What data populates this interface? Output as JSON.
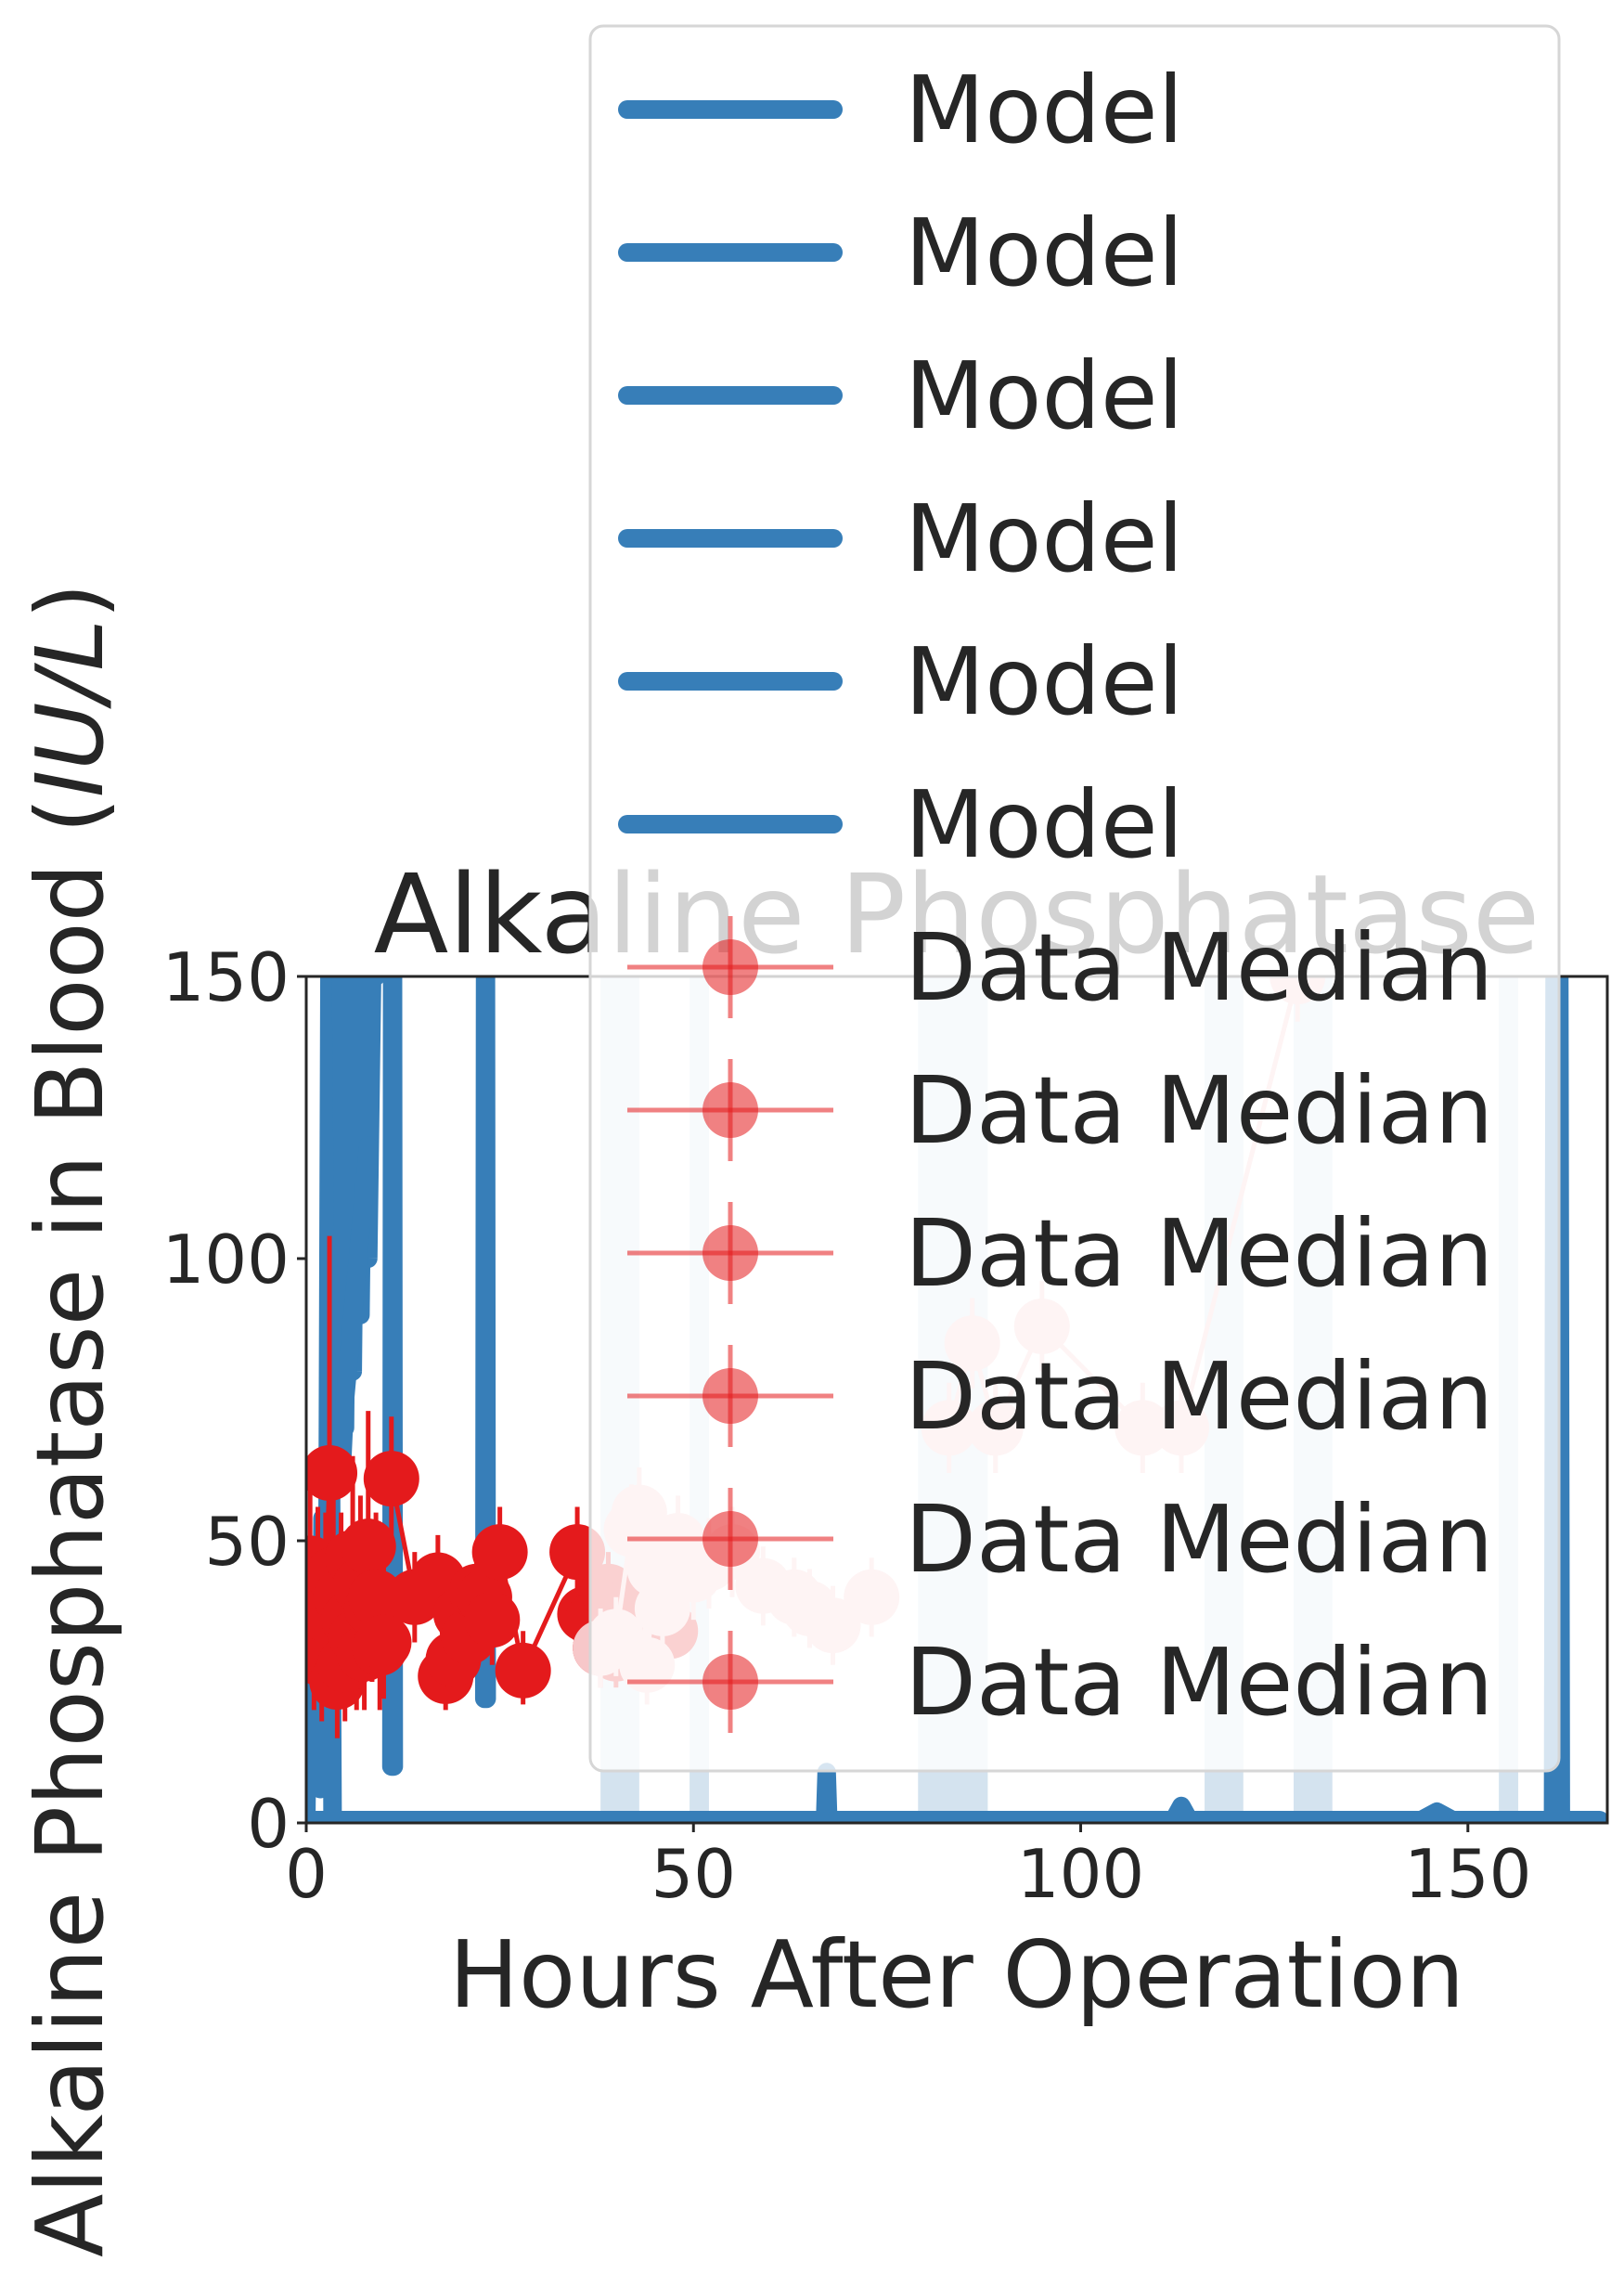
{
  "chart_data": {
    "type": "line",
    "title": "Alkaline Phosphatase",
    "xlabel": "Hours After Operation",
    "ylabel": "Alkaline Phosphatase in Blood (IU/L)",
    "ylabel_main": "Alkaline Phosphatase in Blood (",
    "ylabel_unit": "IU/L",
    "ylabel_close": ")",
    "xlim": [
      0,
      168
    ],
    "ylim": [
      0,
      150
    ],
    "xticks": [
      0,
      50,
      100,
      150
    ],
    "yticks": [
      0,
      50,
      100,
      150
    ],
    "grid": false,
    "legend_position": "top-right",
    "colors": {
      "model": "#377eb8",
      "model_band": "#d4e3ef",
      "data": "#e41a1c",
      "data_light": "#f7c7c9",
      "axis": "#262626"
    },
    "legend": [
      {
        "label": "Model",
        "kind": "line"
      },
      {
        "label": "Model",
        "kind": "line"
      },
      {
        "label": "Model",
        "kind": "line"
      },
      {
        "label": "Model",
        "kind": "line"
      },
      {
        "label": "Model",
        "kind": "line"
      },
      {
        "label": "Model",
        "kind": "line"
      },
      {
        "label": "Data Median",
        "kind": "marker"
      },
      {
        "label": "Data Median",
        "kind": "marker"
      },
      {
        "label": "Data Median",
        "kind": "marker"
      },
      {
        "label": "Data Median",
        "kind": "marker"
      },
      {
        "label": "Data Median",
        "kind": "marker"
      },
      {
        "label": "Data Median",
        "kind": "marker"
      }
    ],
    "model_bands": [
      {
        "x0": 38,
        "x1": 43
      },
      {
        "x0": 49.5,
        "x1": 52
      },
      {
        "x0": 79,
        "x1": 88
      },
      {
        "x0": 116,
        "x1": 121
      },
      {
        "x0": 127.5,
        "x1": 132.5
      },
      {
        "x0": 154,
        "x1": 156.5
      }
    ],
    "model_series": [
      {
        "x": [
          0,
          0.3,
          0.6,
          0.9,
          1.2,
          1.5,
          1.8,
          2.1,
          2.4,
          2.7,
          3.0,
          3.1,
          3.2,
          3.4,
          3.6
        ],
        "y": [
          0,
          40,
          20,
          34,
          14,
          48,
          6,
          54,
          26,
          30,
          150,
          150,
          60,
          1,
          1
        ]
      },
      {
        "x": [
          4.5,
          5,
          5.5,
          6,
          6.5,
          7,
          7.5,
          8,
          8.5,
          9
        ],
        "y": [
          150,
          70,
          150,
          80,
          150,
          90,
          150,
          100,
          150,
          150
        ]
      },
      {
        "x": [
          11,
          11.1,
          11.2,
          11.3
        ],
        "y": [
          10,
          150,
          150,
          10
        ]
      },
      {
        "x": [
          23,
          23.1,
          23.2,
          23.3
        ],
        "y": [
          22,
          150,
          150,
          22
        ]
      },
      {
        "x": [
          0,
          167
        ],
        "y": [
          0.5,
          0.5
        ]
      },
      {
        "x": [
          67,
          67.2,
          67.4
        ],
        "y": [
          0.5,
          9,
          0.5
        ]
      },
      {
        "x": [
          112,
          113,
          114
        ],
        "y": [
          0.5,
          3,
          0.5
        ]
      },
      {
        "x": [
          144,
          146,
          148
        ],
        "y": [
          0.5,
          2,
          0.5
        ]
      },
      {
        "x": [
          161,
          161.2,
          161.8,
          162
        ],
        "y": [
          0,
          150,
          150,
          0
        ]
      },
      {
        "x": [
          4.5,
          5,
          6,
          7,
          8
        ],
        "y": [
          60,
          75,
          90,
          105,
          120
        ]
      }
    ],
    "data_series": [
      {
        "style": "dark",
        "x": [
          0.5,
          1,
          1.5,
          2,
          2.5,
          3,
          3.5,
          4,
          4.5,
          5,
          5.5,
          6,
          6.5,
          7,
          7.5,
          8,
          8.5,
          9,
          9.5,
          10
        ],
        "y": [
          46,
          35,
          41,
          29,
          37,
          62,
          44,
          25,
          40,
          28,
          36,
          47,
          33,
          42,
          30,
          49,
          38,
          40,
          31,
          32
        ],
        "err_low": [
          26,
          20,
          28,
          18,
          22,
          40,
          30,
          15,
          25,
          18,
          22,
          32,
          20,
          28,
          20,
          35,
          25,
          28,
          20,
          22
        ],
        "err_high": [
          60,
          50,
          56,
          44,
          55,
          104,
          60,
          40,
          55,
          42,
          52,
          65,
          48,
          58,
          45,
          73,
          52,
          55,
          45,
          46
        ]
      },
      {
        "style": "dark",
        "x": [
          11,
          14,
          17,
          18,
          19,
          20,
          21,
          22,
          23,
          24,
          25,
          28,
          35,
          36,
          37,
          38,
          39,
          40,
          41,
          42,
          43,
          45,
          46,
          47
        ],
        "y": [
          61,
          40,
          43,
          26,
          29,
          37,
          33,
          41,
          40,
          36,
          48,
          27,
          48,
          37,
          36,
          31,
          41,
          30,
          38,
          36,
          41,
          40,
          35,
          34
        ],
        "err_low": [
          50,
          32,
          35,
          20,
          22,
          30,
          26,
          33,
          32,
          28,
          40,
          21,
          40,
          30,
          29,
          24,
          34,
          24,
          31,
          29,
          34,
          33,
          28,
          27
        ],
        "err_high": [
          72,
          48,
          51,
          32,
          36,
          44,
          40,
          49,
          48,
          44,
          56,
          34,
          56,
          44,
          43,
          38,
          48,
          36,
          45,
          43,
          48,
          47,
          42,
          41
        ]
      },
      {
        "style": "light",
        "x": [
          38,
          40,
          42,
          43,
          44,
          45,
          46,
          48,
          50,
          52,
          55,
          59,
          63,
          65,
          68,
          73
        ],
        "y": [
          31,
          33,
          52,
          55,
          28,
          45,
          38,
          50,
          44,
          46,
          48,
          42,
          40,
          38,
          35,
          40
        ],
        "err_low": [
          24,
          26,
          44,
          47,
          21,
          37,
          31,
          42,
          36,
          38,
          40,
          35,
          33,
          31,
          28,
          33
        ],
        "err_high": [
          38,
          40,
          60,
          63,
          35,
          53,
          45,
          58,
          52,
          54,
          56,
          49,
          47,
          45,
          42,
          47
        ]
      },
      {
        "style": "light",
        "x": [
          83,
          86,
          89,
          95,
          108,
          113,
          128,
          135
        ],
        "y": [
          70,
          85,
          70,
          88,
          70,
          70,
          150,
          165
        ],
        "err_low": [
          62,
          77,
          62,
          80,
          62,
          62,
          142,
          157
        ],
        "err_high": [
          78,
          93,
          78,
          96,
          78,
          78,
          158,
          173
        ]
      }
    ]
  }
}
